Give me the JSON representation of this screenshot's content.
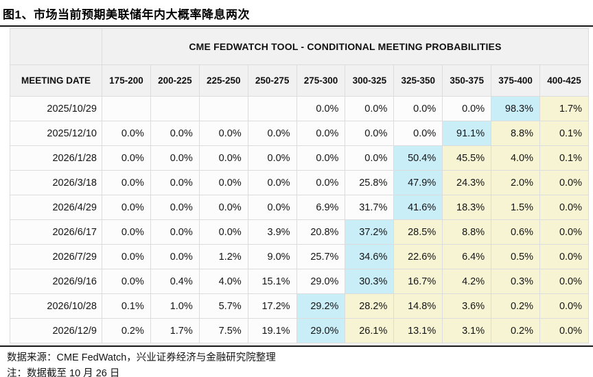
{
  "title": "图1、市场当前预期美联储年内大概率降息两次",
  "footer": {
    "source": "数据来源：CME FedWatch，兴业证券经济与金融研究院整理",
    "note": "注：数据截至 10 月 26 日"
  },
  "colors": {
    "highlight_cyan": "#c9eef8",
    "highlight_yellow": "#f7f4d3",
    "header_bg": "#f1f1f1",
    "cell_bg": "#fcfcfc",
    "grid_line": "#dcdcdc",
    "rule_line": "#161616"
  },
  "chart_data": {
    "type": "table",
    "title": "CME FEDWATCH TOOL - CONDITIONAL MEETING PROBABILITIES",
    "row_header": "MEETING DATE",
    "rate_bins": [
      "175-200",
      "200-225",
      "225-250",
      "250-275",
      "275-300",
      "300-325",
      "325-350",
      "350-375",
      "375-400",
      "400-425"
    ],
    "highlight_legend": {
      "c": "modal-probability-cyan",
      "y": "right-tail-yellow"
    },
    "rows": [
      {
        "date": "2025/10/29",
        "values": [
          "",
          "",
          "",
          "",
          "0.0%",
          "0.0%",
          "0.0%",
          "0.0%",
          "98.3%",
          "1.7%"
        ],
        "hl": [
          "",
          "",
          "",
          "",
          "",
          "",
          "",
          "",
          "c",
          "y"
        ]
      },
      {
        "date": "2025/12/10",
        "values": [
          "0.0%",
          "0.0%",
          "0.0%",
          "0.0%",
          "0.0%",
          "0.0%",
          "0.0%",
          "91.1%",
          "8.8%",
          "0.1%"
        ],
        "hl": [
          "",
          "",
          "",
          "",
          "",
          "",
          "",
          "c",
          "y",
          "y"
        ]
      },
      {
        "date": "2026/1/28",
        "values": [
          "0.0%",
          "0.0%",
          "0.0%",
          "0.0%",
          "0.0%",
          "0.0%",
          "50.4%",
          "45.5%",
          "4.0%",
          "0.1%"
        ],
        "hl": [
          "",
          "",
          "",
          "",
          "",
          "",
          "c",
          "y",
          "y",
          "y"
        ]
      },
      {
        "date": "2026/3/18",
        "values": [
          "0.0%",
          "0.0%",
          "0.0%",
          "0.0%",
          "0.0%",
          "25.8%",
          "47.9%",
          "24.3%",
          "2.0%",
          "0.0%"
        ],
        "hl": [
          "",
          "",
          "",
          "",
          "",
          "",
          "c",
          "y",
          "y",
          "y"
        ]
      },
      {
        "date": "2026/4/29",
        "values": [
          "0.0%",
          "0.0%",
          "0.0%",
          "0.0%",
          "6.9%",
          "31.7%",
          "41.6%",
          "18.3%",
          "1.5%",
          "0.0%"
        ],
        "hl": [
          "",
          "",
          "",
          "",
          "",
          "",
          "c",
          "y",
          "y",
          "y"
        ]
      },
      {
        "date": "2026/6/17",
        "values": [
          "0.0%",
          "0.0%",
          "0.0%",
          "3.9%",
          "20.8%",
          "37.2%",
          "28.5%",
          "8.8%",
          "0.6%",
          "0.0%"
        ],
        "hl": [
          "",
          "",
          "",
          "",
          "",
          "c",
          "y",
          "y",
          "y",
          "y"
        ]
      },
      {
        "date": "2026/7/29",
        "values": [
          "0.0%",
          "0.0%",
          "1.2%",
          "9.0%",
          "25.7%",
          "34.6%",
          "22.6%",
          "6.4%",
          "0.5%",
          "0.0%"
        ],
        "hl": [
          "",
          "",
          "",
          "",
          "",
          "c",
          "y",
          "y",
          "y",
          "y"
        ]
      },
      {
        "date": "2026/9/16",
        "values": [
          "0.0%",
          "0.4%",
          "4.0%",
          "15.1%",
          "29.0%",
          "30.3%",
          "16.7%",
          "4.2%",
          "0.3%",
          "0.0%"
        ],
        "hl": [
          "",
          "",
          "",
          "",
          "",
          "c",
          "y",
          "y",
          "y",
          "y"
        ]
      },
      {
        "date": "2026/10/28",
        "values": [
          "0.1%",
          "1.0%",
          "5.7%",
          "17.2%",
          "29.2%",
          "28.2%",
          "14.8%",
          "3.6%",
          "0.2%",
          "0.0%"
        ],
        "hl": [
          "",
          "",
          "",
          "",
          "c",
          "y",
          "y",
          "y",
          "y",
          "y"
        ]
      },
      {
        "date": "2026/12/9",
        "values": [
          "0.2%",
          "1.7%",
          "7.5%",
          "19.1%",
          "29.0%",
          "26.1%",
          "13.1%",
          "3.1%",
          "0.2%",
          "0.0%"
        ],
        "hl": [
          "",
          "",
          "",
          "",
          "c",
          "y",
          "y",
          "y",
          "y",
          "y"
        ]
      }
    ]
  }
}
